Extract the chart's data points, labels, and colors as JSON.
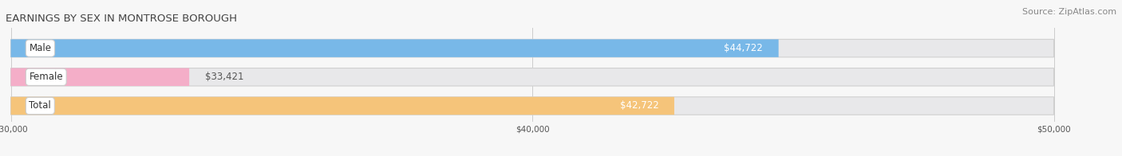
{
  "title": "EARNINGS BY SEX IN MONTROSE BOROUGH",
  "source": "Source: ZipAtlas.com",
  "categories": [
    "Male",
    "Female",
    "Total"
  ],
  "values": [
    44722,
    33421,
    42722
  ],
  "bar_colors": [
    "#78b8e8",
    "#f4aec8",
    "#f5c47a"
  ],
  "x_min": 30000,
  "x_max": 50000,
  "x_ticks": [
    30000,
    40000,
    50000
  ],
  "x_tick_labels": [
    "$30,000",
    "$40,000",
    "$50,000"
  ],
  "title_fontsize": 9.5,
  "source_fontsize": 8,
  "bar_label_fontsize": 8.5,
  "cat_label_fontsize": 8.5,
  "bg_color": "#f7f7f7",
  "bar_bg_color": "#e8e8ea"
}
